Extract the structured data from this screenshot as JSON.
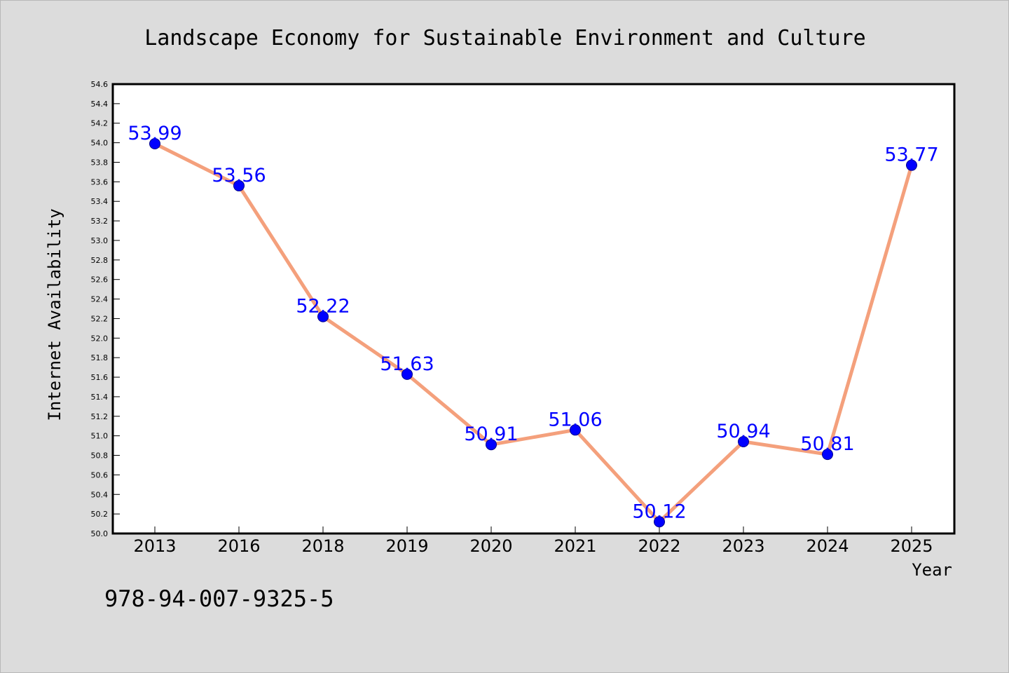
{
  "chart_data": {
    "type": "line",
    "title": "Landscape Economy for Sustainable Environment and Culture",
    "xlabel": "Year",
    "ylabel": "Internet Availability",
    "categories": [
      "2013",
      "2016",
      "2018",
      "2019",
      "2020",
      "2021",
      "2022",
      "2023",
      "2024",
      "2025"
    ],
    "series": [
      {
        "values": [
          53.99,
          53.56,
          52.22,
          51.63,
          50.91,
          51.06,
          50.12,
          50.94,
          50.81,
          53.77
        ],
        "data_labels": [
          "53.99",
          "53.56",
          "52.22",
          "51.63",
          "50.91",
          "51.06",
          "50.12",
          "50.94",
          "50.81",
          "53.77"
        ]
      }
    ],
    "ylim": [
      50.0,
      54.6
    ],
    "y_ticks": [
      "50.0",
      "50.2",
      "50.4",
      "50.6",
      "50.8",
      "51.0",
      "51.2",
      "51.4",
      "51.6",
      "51.8",
      "52.0",
      "52.2",
      "52.4",
      "52.6",
      "52.8",
      "53.0",
      "53.2",
      "53.4",
      "53.6",
      "53.8",
      "54.0",
      "54.2",
      "54.4",
      "54.6"
    ],
    "grid": false,
    "legend": "none",
    "colors": {
      "line": "#f4a07c",
      "marker": "#0000ff",
      "data_label": "#0000ff",
      "background": "#dcdcdc",
      "plot_background": "#ffffff"
    }
  },
  "footer": {
    "isbn": "978-94-007-9325-5"
  }
}
